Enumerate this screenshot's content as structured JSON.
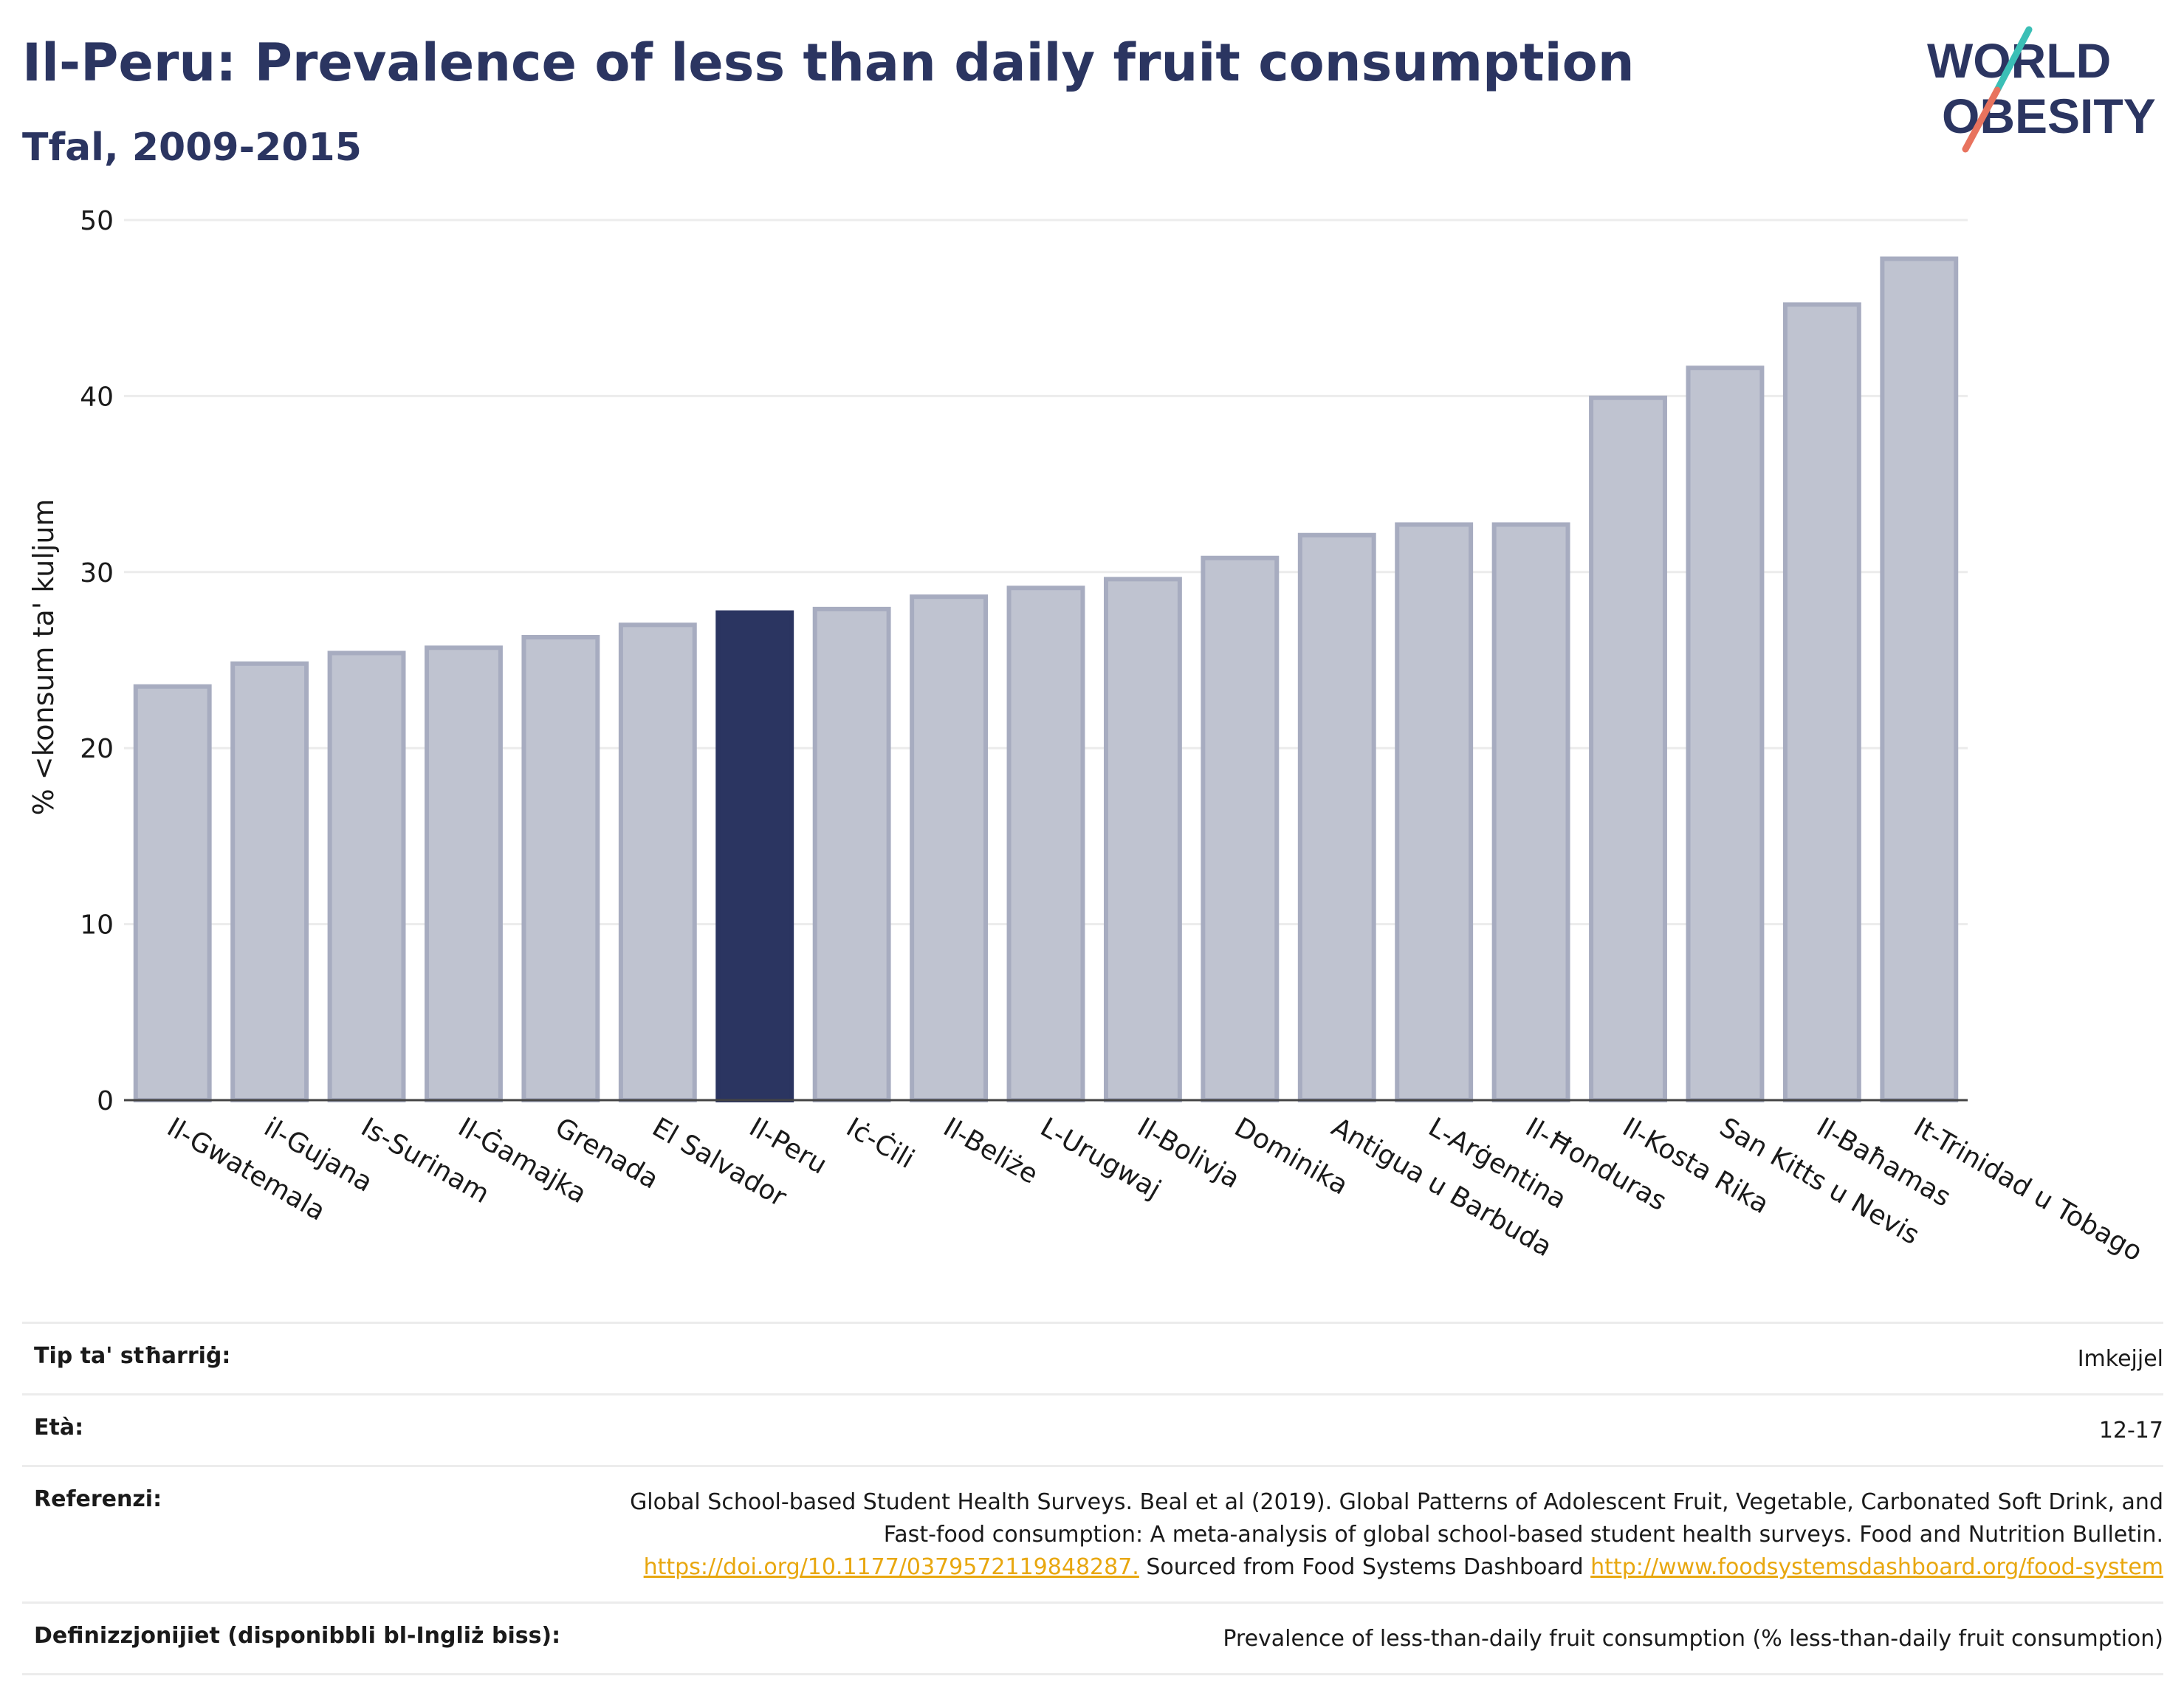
{
  "header": {
    "title": "Il-Peru: Prevalence of less than daily fruit consumption",
    "subtitle": "Tfal, 2009-2015"
  },
  "logo": {
    "line1": "WORLD",
    "line2": "OBESITY",
    "colors": {
      "text": "#2b3561",
      "slash_top": "#3bbfb6",
      "slash_bottom": "#e8735e"
    }
  },
  "colors": {
    "bar": "#bfc3d0",
    "bar_border": "#a7acc0",
    "highlight": "#2b3561",
    "grid": "#ececec"
  },
  "chart_data": {
    "type": "bar",
    "title": "Il-Peru: Prevalence of less than daily fruit consumption",
    "subtitle": "Tfal, 2009-2015",
    "xlabel": "",
    "ylabel": "% <konsum ta' kuljum",
    "ylim": [
      0,
      50
    ],
    "yticks": [
      0,
      10,
      20,
      30,
      40,
      50
    ],
    "grid": true,
    "highlight": "Il-Peru",
    "categories": [
      "Il-Gwatemala",
      "il-Gujana",
      "Is-Surinam",
      "Il-Ġamajka",
      "Grenada",
      "El Salvador",
      "Il-Peru",
      "Iċ-Ċili",
      "Il-Beliże",
      "L-Urugwaj",
      "Il-Bolivja",
      "Dominika",
      "Antigua u Barbuda",
      "L-Arġentina",
      "Il-Ħonduras",
      "Il-Kosta Rika",
      "San Kitts u Nevis",
      "Il-Baħamas",
      "It-Trinidad u Tobago"
    ],
    "values": [
      23.5,
      24.8,
      25.4,
      25.7,
      26.3,
      27.0,
      27.7,
      27.9,
      28.6,
      29.1,
      29.6,
      30.8,
      32.1,
      32.7,
      32.7,
      39.9,
      41.6,
      45.2,
      47.8
    ]
  },
  "meta": {
    "rows": [
      {
        "label": "Tip ta' stħarriġ:",
        "value": "Imkejjel"
      },
      {
        "label": "Età:",
        "value": "12-17"
      },
      {
        "label": "Referenzi:",
        "value": "Global School-based Student Health Surveys. Beal et al (2019). Global Patterns of Adolescent Fruit, Vegetable, Carbonated Soft Drink, and Fast-food consumption: A meta-analysis of global school-based student health surveys. Food and Nutrition Bulletin. ",
        "link1": "https://doi.org/10.1177/0379572119848287.",
        "middle": " Sourced from Food Systems Dashboard ",
        "link2": "http://www.foodsystemsdashboard.org/food-system"
      },
      {
        "label": "Definizzjonijiet (disponibbli bl-Ingliż biss):",
        "value": "Prevalence of less-than-daily fruit consumption (% less-than-daily fruit consumption)"
      }
    ]
  }
}
